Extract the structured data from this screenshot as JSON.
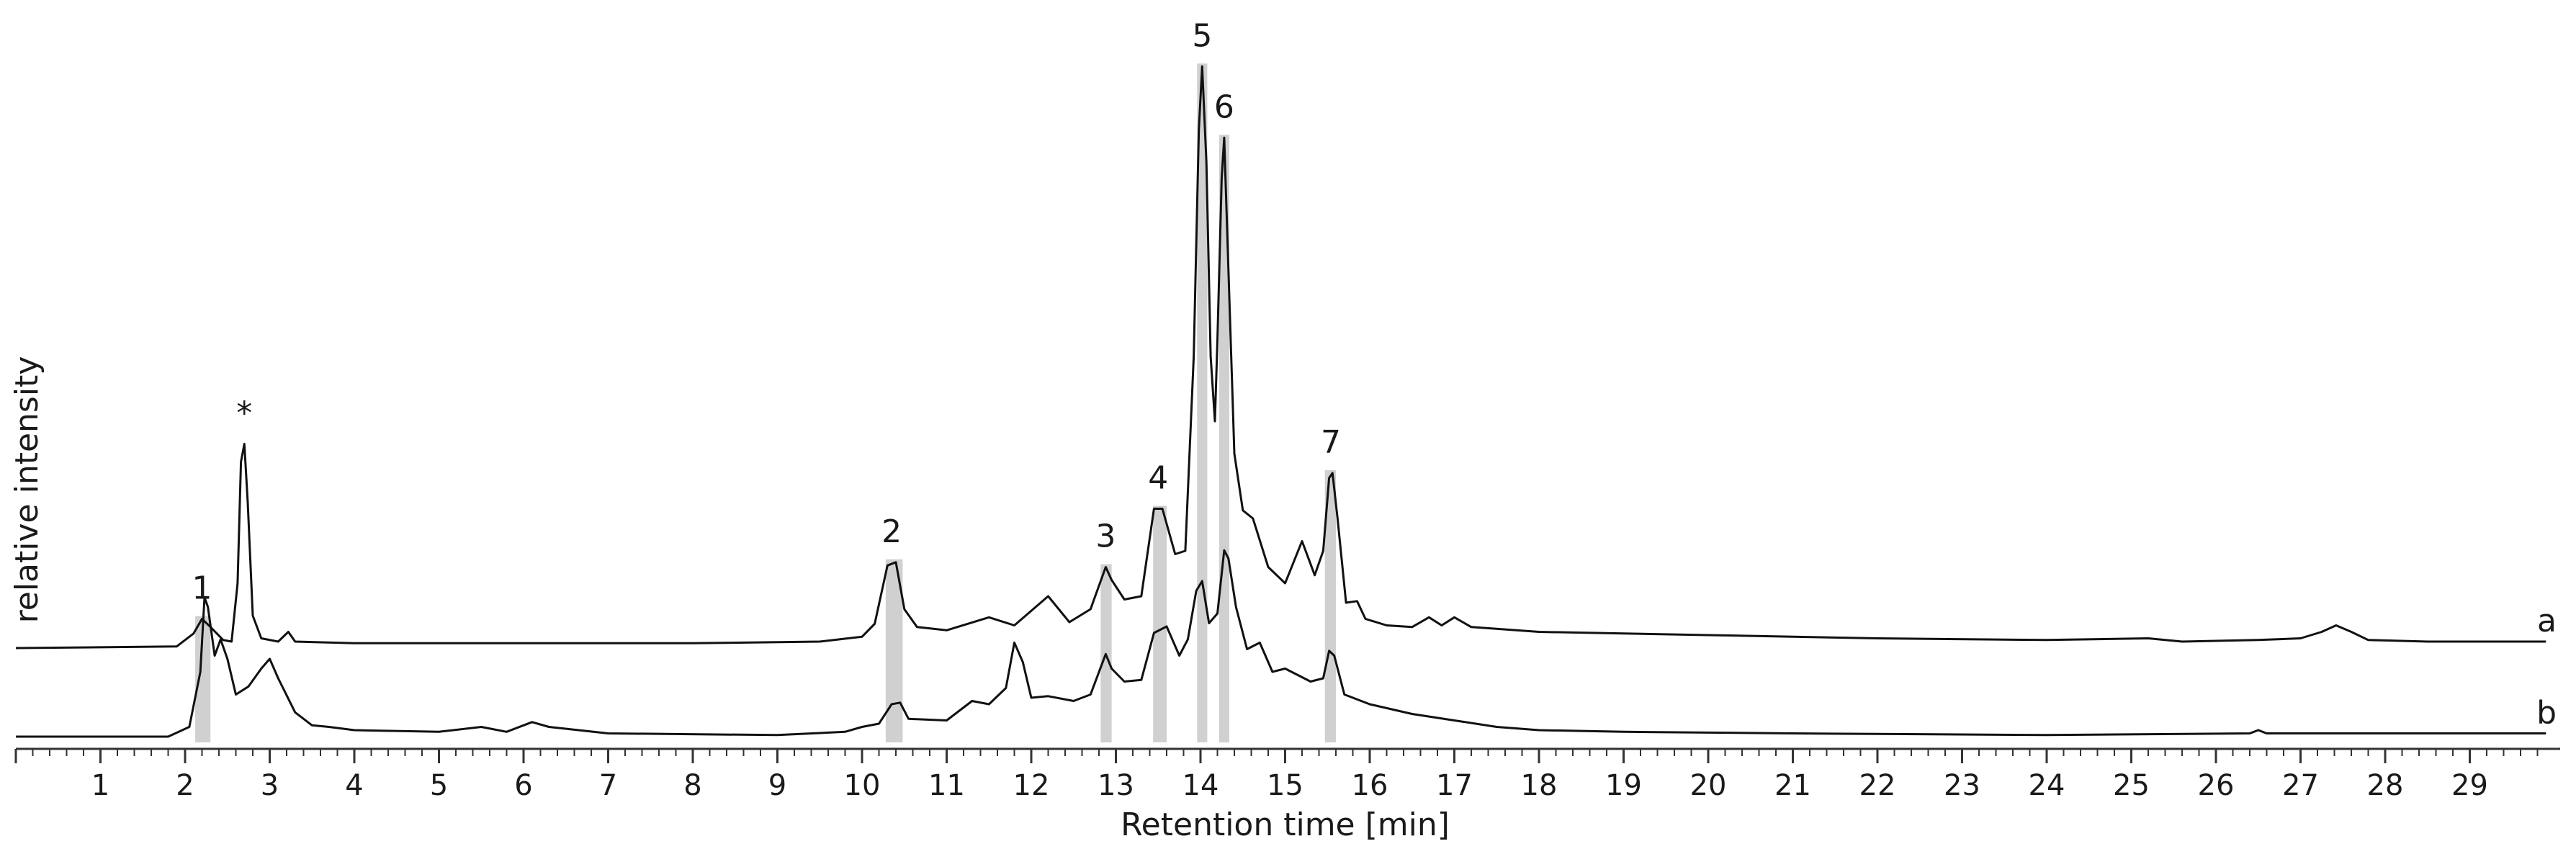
{
  "chart_data": {
    "type": "line",
    "title": "",
    "xlabel": "Retention time [min]",
    "ylabel": "relative intensity",
    "xlim": [
      0,
      29.9
    ],
    "x_ticks": [
      "1",
      "2",
      "3",
      "4",
      "5",
      "6",
      "7",
      "8",
      "9",
      "10",
      "11",
      "12",
      "13",
      "14",
      "15",
      "16",
      "17",
      "18",
      "19",
      "20",
      "21",
      "22",
      "23",
      "24",
      "25",
      "26",
      "27",
      "28",
      "29"
    ],
    "grid": false,
    "legend": "none",
    "line_color": "#111111",
    "highlight_color": "#d0d0d0",
    "series": [
      {
        "label": "a",
        "baseline": 0,
        "points": [
          [
            0.0,
            0.0
          ],
          [
            1.9,
            0.1
          ],
          [
            2.1,
            0.9
          ],
          [
            2.2,
            1.8
          ],
          [
            2.3,
            1.3
          ],
          [
            2.45,
            0.5
          ],
          [
            2.55,
            0.4
          ],
          [
            2.62,
            4.0
          ],
          [
            2.66,
            11.5
          ],
          [
            2.7,
            12.6
          ],
          [
            2.74,
            9.0
          ],
          [
            2.8,
            2.0
          ],
          [
            2.9,
            0.6
          ],
          [
            3.1,
            0.4
          ],
          [
            3.22,
            1.0
          ],
          [
            3.3,
            0.4
          ],
          [
            4.0,
            0.3
          ],
          [
            6.0,
            0.3
          ],
          [
            8.0,
            0.3
          ],
          [
            9.5,
            0.4
          ],
          [
            10.0,
            0.7
          ],
          [
            10.15,
            1.5
          ],
          [
            10.3,
            5.1
          ],
          [
            10.4,
            5.3
          ],
          [
            10.5,
            2.4
          ],
          [
            10.65,
            1.3
          ],
          [
            11.0,
            1.1
          ],
          [
            11.5,
            1.9
          ],
          [
            11.8,
            1.4
          ],
          [
            12.2,
            3.2
          ],
          [
            12.45,
            1.6
          ],
          [
            12.7,
            2.4
          ],
          [
            12.88,
            5.0
          ],
          [
            12.95,
            4.2
          ],
          [
            13.1,
            3.0
          ],
          [
            13.3,
            3.2
          ],
          [
            13.45,
            8.6
          ],
          [
            13.55,
            8.6
          ],
          [
            13.7,
            5.8
          ],
          [
            13.82,
            6.0
          ],
          [
            13.92,
            18.0
          ],
          [
            13.98,
            32.0
          ],
          [
            14.02,
            35.9
          ],
          [
            14.07,
            30.0
          ],
          [
            14.12,
            18.0
          ],
          [
            14.17,
            14.0
          ],
          [
            14.2,
            19.0
          ],
          [
            14.25,
            29.0
          ],
          [
            14.28,
            31.5
          ],
          [
            14.32,
            25.0
          ],
          [
            14.4,
            12.0
          ],
          [
            14.5,
            8.5
          ],
          [
            14.62,
            8.0
          ],
          [
            14.8,
            5.0
          ],
          [
            15.0,
            4.0
          ],
          [
            15.2,
            6.6
          ],
          [
            15.35,
            4.5
          ],
          [
            15.45,
            6.0
          ],
          [
            15.52,
            10.5
          ],
          [
            15.56,
            10.8
          ],
          [
            15.62,
            8.0
          ],
          [
            15.72,
            2.8
          ],
          [
            15.85,
            2.9
          ],
          [
            15.95,
            1.8
          ],
          [
            16.2,
            1.4
          ],
          [
            16.5,
            1.3
          ],
          [
            16.7,
            1.9
          ],
          [
            16.85,
            1.4
          ],
          [
            17.0,
            1.9
          ],
          [
            17.2,
            1.3
          ],
          [
            18.0,
            1.0
          ],
          [
            20.0,
            0.8
          ],
          [
            22.0,
            0.6
          ],
          [
            24.0,
            0.5
          ],
          [
            25.2,
            0.6
          ],
          [
            25.6,
            0.4
          ],
          [
            26.5,
            0.5
          ],
          [
            27.0,
            0.6
          ],
          [
            27.25,
            1.0
          ],
          [
            27.42,
            1.4
          ],
          [
            27.6,
            1.0
          ],
          [
            27.8,
            0.5
          ],
          [
            28.5,
            0.4
          ],
          [
            29.9,
            0.4
          ]
        ]
      },
      {
        "label": "b",
        "baseline": 0,
        "points": [
          [
            0.0,
            0.0
          ],
          [
            1.8,
            0.0
          ],
          [
            2.05,
            0.6
          ],
          [
            2.18,
            4.0
          ],
          [
            2.23,
            8.6
          ],
          [
            2.27,
            8.0
          ],
          [
            2.35,
            5.0
          ],
          [
            2.42,
            6.0
          ],
          [
            2.5,
            4.8
          ],
          [
            2.6,
            2.6
          ],
          [
            2.75,
            3.1
          ],
          [
            2.9,
            4.2
          ],
          [
            3.0,
            4.8
          ],
          [
            3.1,
            3.6
          ],
          [
            3.3,
            1.5
          ],
          [
            3.5,
            0.7
          ],
          [
            3.7,
            0.6
          ],
          [
            4.0,
            0.4
          ],
          [
            5.0,
            0.3
          ],
          [
            5.5,
            0.6
          ],
          [
            5.8,
            0.3
          ],
          [
            6.1,
            0.9
          ],
          [
            6.3,
            0.6
          ],
          [
            7.0,
            0.2
          ],
          [
            9.0,
            0.1
          ],
          [
            9.8,
            0.3
          ],
          [
            10.0,
            0.6
          ],
          [
            10.2,
            0.8
          ],
          [
            10.35,
            2.0
          ],
          [
            10.45,
            2.1
          ],
          [
            10.55,
            1.1
          ],
          [
            11.0,
            1.0
          ],
          [
            11.3,
            2.2
          ],
          [
            11.5,
            2.0
          ],
          [
            11.7,
            3.0
          ],
          [
            11.8,
            5.8
          ],
          [
            11.9,
            4.6
          ],
          [
            12.0,
            2.4
          ],
          [
            12.2,
            2.5
          ],
          [
            12.5,
            2.2
          ],
          [
            12.7,
            2.6
          ],
          [
            12.88,
            5.1
          ],
          [
            12.95,
            4.2
          ],
          [
            13.1,
            3.4
          ],
          [
            13.3,
            3.5
          ],
          [
            13.45,
            6.4
          ],
          [
            13.6,
            6.8
          ],
          [
            13.75,
            5.0
          ],
          [
            13.85,
            6.0
          ],
          [
            13.95,
            9.0
          ],
          [
            14.02,
            9.6
          ],
          [
            14.1,
            7.0
          ],
          [
            14.2,
            7.6
          ],
          [
            14.28,
            11.5
          ],
          [
            14.33,
            11.0
          ],
          [
            14.42,
            8.0
          ],
          [
            14.55,
            5.4
          ],
          [
            14.7,
            5.8
          ],
          [
            14.85,
            4.0
          ],
          [
            15.0,
            4.2
          ],
          [
            15.3,
            3.4
          ],
          [
            15.45,
            3.6
          ],
          [
            15.52,
            5.3
          ],
          [
            15.58,
            5.0
          ],
          [
            15.7,
            2.6
          ],
          [
            16.0,
            2.0
          ],
          [
            16.5,
            1.4
          ],
          [
            17.0,
            1.0
          ],
          [
            17.5,
            0.6
          ],
          [
            18.0,
            0.4
          ],
          [
            19.0,
            0.3
          ],
          [
            21.0,
            0.2
          ],
          [
            24.0,
            0.1
          ],
          [
            26.4,
            0.2
          ],
          [
            26.5,
            0.4
          ],
          [
            26.6,
            0.2
          ],
          [
            28.0,
            0.2
          ],
          [
            29.9,
            0.2
          ]
        ]
      }
    ],
    "annotations": [
      {
        "label": "*",
        "x": 2.7,
        "series": "a"
      },
      {
        "label": "1",
        "x": 2.2,
        "series": "a"
      },
      {
        "label": "2",
        "x": 10.35,
        "series": "a"
      },
      {
        "label": "3",
        "x": 12.88,
        "series": "a"
      },
      {
        "label": "4",
        "x": 13.5,
        "series": "a"
      },
      {
        "label": "5",
        "x": 14.02,
        "series": "a"
      },
      {
        "label": "6",
        "x": 14.28,
        "series": "a"
      },
      {
        "label": "7",
        "x": 15.54,
        "series": "a"
      }
    ],
    "highlight_bands": [
      {
        "label": "1",
        "x0": 2.12,
        "x1": 2.3
      },
      {
        "label": "2",
        "x0": 10.28,
        "x1": 10.48
      },
      {
        "label": "3",
        "x0": 12.82,
        "x1": 12.95
      },
      {
        "label": "4",
        "x0": 13.44,
        "x1": 13.6
      },
      {
        "label": "5",
        "x0": 13.96,
        "x1": 14.08
      },
      {
        "label": "6",
        "x0": 14.22,
        "x1": 14.34
      },
      {
        "label": "7",
        "x0": 15.47,
        "x1": 15.6
      }
    ]
  }
}
